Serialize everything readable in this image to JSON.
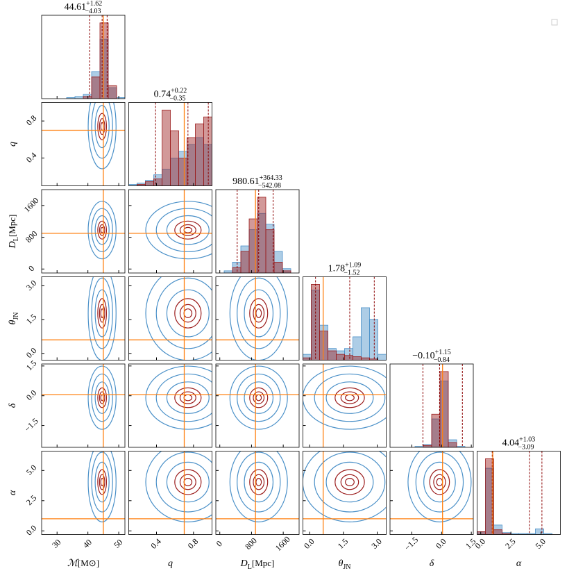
{
  "chart_data": {
    "type": "corner",
    "truth_color": "#ff7f0e",
    "quantile_color": "#8b0000",
    "series": [
      {
        "color": "#4a90c8"
      },
      {
        "color": "#9b1c1c"
      }
    ],
    "params": [
      {
        "label": {
          "base": "ℳ",
          "unit": "[M⊙]"
        },
        "lim": [
          25,
          52
        ],
        "ticks": [
          30,
          40,
          50
        ],
        "truth": 45,
        "title": {
          "median": 44.61,
          "plus": {
            "value": 1.62,
            "label": "+1.62"
          },
          "minus": {
            "value": -4.03,
            "label": "−4.03"
          }
        },
        "hist": [
          [
            0,
            0,
            0,
            1,
            2,
            4,
            25,
            55,
            10,
            1
          ],
          [
            0,
            0,
            0,
            0,
            0,
            2,
            20,
            70,
            12,
            0
          ]
        ]
      },
      {
        "label": {
          "base": "q"
        },
        "lim": [
          0.1,
          1.0
        ],
        "ticks": [
          0.4,
          0.8
        ],
        "truth": 0.7,
        "title": {
          "median": 0.74,
          "plus": {
            "value": 0.22,
            "label": "+0.22"
          },
          "minus": {
            "value": -0.35,
            "label": "−0.35"
          }
        },
        "hist": [
          [
            1,
            2,
            4,
            8,
            12,
            20,
            25,
            30,
            35,
            30
          ],
          [
            0,
            1,
            3,
            5,
            55,
            40,
            20,
            35,
            45,
            50
          ]
        ]
      },
      {
        "label": {
          "base": "D",
          "sub": "L",
          "unit": "[Mpc]"
        },
        "lim": [
          -100,
          2000
        ],
        "ticks": [
          0,
          800,
          1600
        ],
        "truth": 900,
        "title": {
          "median": 980.61,
          "plus": {
            "value": 364.33,
            "label": "+364.33"
          },
          "minus": {
            "value": -542.08,
            "label": "−542.08"
          }
        },
        "hist": [
          [
            0,
            2,
            10,
            25,
            40,
            55,
            45,
            20,
            4,
            0
          ],
          [
            0,
            0,
            5,
            20,
            50,
            70,
            40,
            10,
            2,
            0
          ]
        ]
      },
      {
        "label": {
          "base": "θ",
          "sub": "JN"
        },
        "lim": [
          -0.3,
          3.4
        ],
        "ticks": [
          {
            "value": 0,
            "label": "0.0"
          },
          1.5,
          {
            "value": 3,
            "label": "3.0"
          }
        ],
        "truth": 0.6,
        "title": {
          "median": 1.78,
          "plus": {
            "value": 1.09,
            "label": "+1.09"
          },
          "minus": {
            "value": -1.52,
            "label": "−1.52"
          }
        },
        "hist": [
          [
            5,
            60,
            30,
            10,
            8,
            10,
            20,
            45,
            35,
            5
          ],
          [
            2,
            65,
            25,
            8,
            5,
            4,
            3,
            2,
            1,
            0
          ]
        ]
      },
      {
        "label": {
          "base": "δ"
        },
        "lim": [
          -2.6,
          1.6
        ],
        "ticks": [
          {
            "value": -1.5,
            "label": "−1.5"
          },
          {
            "value": 0,
            "label": "0.0"
          },
          1.5
        ],
        "truth": 0.05,
        "title": {
          "median": {
            "value": -0.1,
            "label": "−0.10"
          },
          "plus": {
            "value": 1.15,
            "label": "+1.15"
          },
          "minus": {
            "value": -0.84,
            "label": "−0.84"
          }
        },
        "hist": [
          [
            0,
            0,
            0,
            1,
            3,
            30,
            70,
            8,
            1,
            0
          ],
          [
            0,
            0,
            0,
            0,
            2,
            35,
            80,
            5,
            0,
            0
          ]
        ]
      },
      {
        "label": {
          "base": "α"
        },
        "lim": [
          -0.3,
          6.6
        ],
        "ticks": [
          {
            "value": 0,
            "label": "0.0"
          },
          2.5,
          {
            "value": 5,
            "label": "5.0"
          }
        ],
        "truth": 1.0,
        "title": {
          "median": 4.04,
          "plus": {
            "value": 1.03,
            "label": "+1.03"
          },
          "minus": {
            "value": -3.09,
            "label": "−3.09"
          }
        },
        "hist": [
          [
            3,
            70,
            10,
            2,
            1,
            1,
            1,
            6,
            1,
            0
          ],
          [
            3,
            80,
            5,
            1,
            0,
            0,
            0,
            0,
            0,
            0
          ]
        ]
      }
    ]
  }
}
